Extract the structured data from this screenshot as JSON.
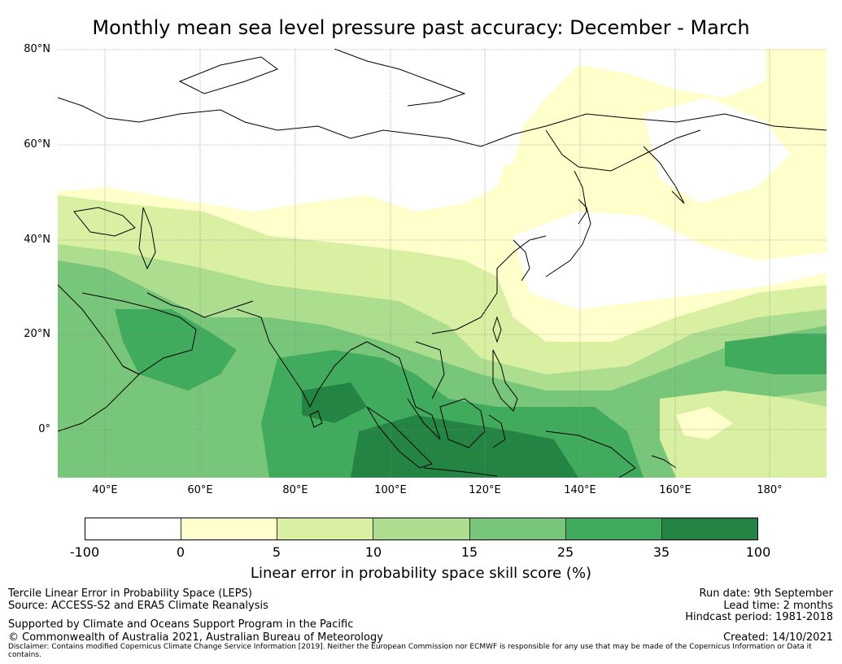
{
  "title": "Monthly mean sea level pressure past accuracy: December - March",
  "map": {
    "lat_labels": [
      "80°N",
      "60°N",
      "40°N",
      "20°N",
      "0°"
    ],
    "lon_labels": [
      "40°E",
      "60°E",
      "80°E",
      "100°E",
      "120°E",
      "140°E",
      "160°E",
      "180°"
    ],
    "extent": {
      "lon_min": 30,
      "lon_max": 192,
      "lat_min": -10,
      "lat_max": 80
    },
    "gridlines": true,
    "coastline_color": "#000000"
  },
  "colorbar": {
    "ticks": [
      "-100",
      "0",
      "5",
      "10",
      "15",
      "25",
      "35",
      "100"
    ],
    "colors": [
      "#ffffff",
      "#ffffcc",
      "#d9f0a3",
      "#addd8e",
      "#78c679",
      "#41ab5d",
      "#238443"
    ],
    "label": "Linear error in probability space skill score (%)"
  },
  "footer": {
    "left1": "Tercile Linear Error in Probability Space (LEPS)",
    "left2": "Source: ACCESS-S2 and ERA5 Climate Reanalysis",
    "left3": "Supported by Climate and Oceans Support Program in the Pacific",
    "left4": "© Commonwealth of Australia 2021, Australian Bureau of Meteorology",
    "right1": "Run date: 9th September",
    "right2": "Lead time: 2 months",
    "right3": "Hindcast period: 1981-2018",
    "right4": "Created: 14/10/2021",
    "disclaimer": "Disclaimer: Contains modified Copernicus Climate Change Service Information [2019]. Neither the European Commission nor ECMWF is responsible for any use that may be made of the Copernicus Information or Data it contains."
  }
}
